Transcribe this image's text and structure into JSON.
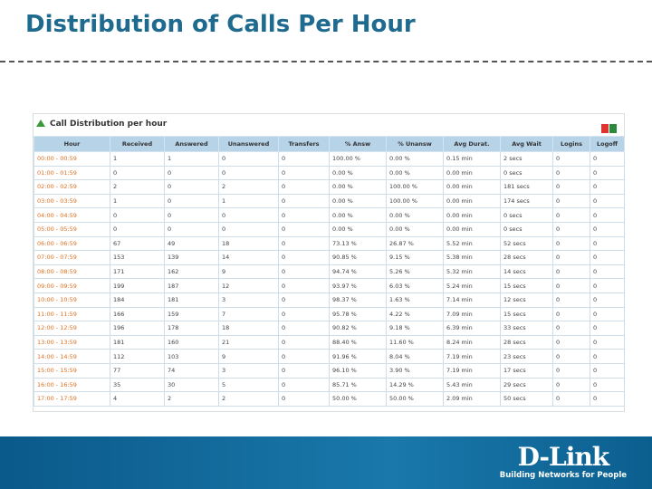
{
  "header": {
    "title": "Distribution of Calls Per Hour"
  },
  "panel": {
    "title": "Call Distribution per hour"
  },
  "table": {
    "columns": [
      "Hour",
      "Received",
      "Answered",
      "Unanswered",
      "Transfers",
      "% Answ",
      "% Unansw",
      "Avg Durat.",
      "Avg Wait",
      "Logins",
      "Logoff"
    ],
    "rows": [
      [
        "00:00 - 00:59",
        "1",
        "1",
        "0",
        "0",
        "100.00 %",
        "0.00 %",
        "0.15 min",
        "2 secs",
        "0",
        "0"
      ],
      [
        "01:00 - 01:59",
        "0",
        "0",
        "0",
        "0",
        "0.00 %",
        "0.00 %",
        "0.00 min",
        "0 secs",
        "0",
        "0"
      ],
      [
        "02:00 - 02:59",
        "2",
        "0",
        "2",
        "0",
        "0.00 %",
        "100.00 %",
        "0.00 min",
        "181 secs",
        "0",
        "0"
      ],
      [
        "03:00 - 03:59",
        "1",
        "0",
        "1",
        "0",
        "0.00 %",
        "100.00 %",
        "0.00 min",
        "174 secs",
        "0",
        "0"
      ],
      [
        "04:00 - 04:59",
        "0",
        "0",
        "0",
        "0",
        "0.00 %",
        "0.00 %",
        "0.00 min",
        "0 secs",
        "0",
        "0"
      ],
      [
        "05:00 - 05:59",
        "0",
        "0",
        "0",
        "0",
        "0.00 %",
        "0.00 %",
        "0.00 min",
        "0 secs",
        "0",
        "0"
      ],
      [
        "06:00 - 06:59",
        "67",
        "49",
        "18",
        "0",
        "73.13 %",
        "26.87 %",
        "5.52 min",
        "52 secs",
        "0",
        "0"
      ],
      [
        "07:00 - 07:59",
        "153",
        "139",
        "14",
        "0",
        "90.85 %",
        "9.15 %",
        "5.38 min",
        "28 secs",
        "0",
        "0"
      ],
      [
        "08:00 - 08:59",
        "171",
        "162",
        "9",
        "0",
        "94.74 %",
        "5.26 %",
        "5.32 min",
        "14 secs",
        "0",
        "0"
      ],
      [
        "09:00 - 09:59",
        "199",
        "187",
        "12",
        "0",
        "93.97 %",
        "6.03 %",
        "5.24 min",
        "15 secs",
        "0",
        "0"
      ],
      [
        "10:00 - 10:59",
        "184",
        "181",
        "3",
        "0",
        "98.37 %",
        "1.63 %",
        "7.14 min",
        "12 secs",
        "0",
        "0"
      ],
      [
        "11:00 - 11:59",
        "166",
        "159",
        "7",
        "0",
        "95.78 %",
        "4.22 %",
        "7.09 min",
        "15 secs",
        "0",
        "0"
      ],
      [
        "12:00 - 12:59",
        "196",
        "178",
        "18",
        "0",
        "90.82 %",
        "9.18 %",
        "6.39 min",
        "33 secs",
        "0",
        "0"
      ],
      [
        "13:00 - 13:59",
        "181",
        "160",
        "21",
        "0",
        "88.40 %",
        "11.60 %",
        "8.24 min",
        "28 secs",
        "0",
        "0"
      ],
      [
        "14:00 - 14:59",
        "112",
        "103",
        "9",
        "0",
        "91.96 %",
        "8.04 %",
        "7.19 min",
        "23 secs",
        "0",
        "0"
      ],
      [
        "15:00 - 15:59",
        "77",
        "74",
        "3",
        "0",
        "96.10 %",
        "3.90 %",
        "7.19 min",
        "17 secs",
        "0",
        "0"
      ],
      [
        "16:00 - 16:59",
        "35",
        "30",
        "5",
        "0",
        "85.71 %",
        "14.29 %",
        "5.43 min",
        "29 secs",
        "0",
        "0"
      ],
      [
        "17:00 - 17:59",
        "4",
        "2",
        "2",
        "0",
        "50.00 %",
        "50.00 %",
        "2.09 min",
        "50 secs",
        "0",
        "0"
      ]
    ]
  },
  "footer": {
    "logo": "D-Link",
    "tagline": "Building Networks for People"
  }
}
